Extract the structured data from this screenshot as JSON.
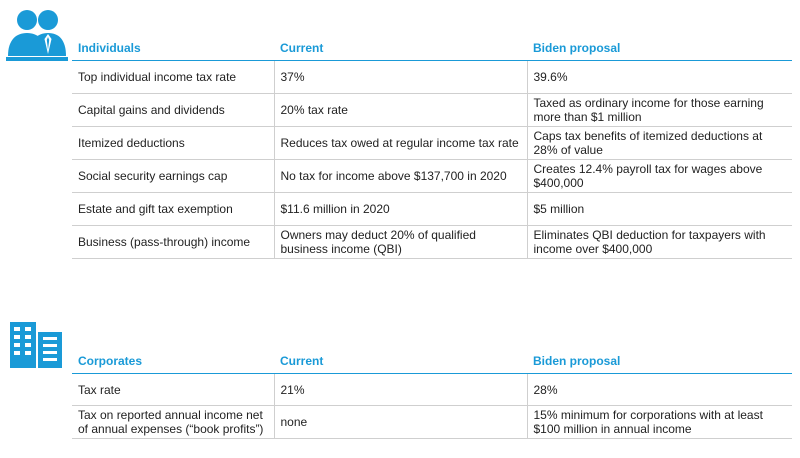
{
  "colors": {
    "accent": "#1a9ad7",
    "rule": "#cfcfcf"
  },
  "individuals": {
    "icon": "people-icon",
    "headers": [
      "Individuals",
      "Current",
      "Biden proposal"
    ],
    "rows": [
      [
        "Top individual income tax rate",
        "37%",
        "39.6%"
      ],
      [
        "Capital gains and dividends",
        "20% tax rate",
        "Taxed as ordinary income for those earning more than $1 million"
      ],
      [
        "Itemized deductions",
        "Reduces tax owed at regular income tax rate",
        "Caps tax benefits of itemized deductions at 28% of value"
      ],
      [
        "Social security earnings cap",
        "No tax for income above $137,700 in 2020",
        "Creates 12.4% payroll tax for wages above $400,000"
      ],
      [
        "Estate and gift tax exemption",
        "$11.6 million in 2020",
        "$5 million"
      ],
      [
        "Business (pass-through) income",
        "Owners may deduct 20% of qualified business income (QBI)",
        "Eliminates QBI deduction for taxpayers with income over $400,000"
      ]
    ]
  },
  "corporates": {
    "icon": "building-icon",
    "headers": [
      "Corporates",
      "Current",
      "Biden proposal"
    ],
    "rows": [
      [
        "Tax rate",
        "21%",
        "28%"
      ],
      [
        "Tax on reported annual income net of annual expenses (“book profits”)",
        "none",
        "15% minimum for corporations with at least $100 million in annual income"
      ]
    ]
  }
}
